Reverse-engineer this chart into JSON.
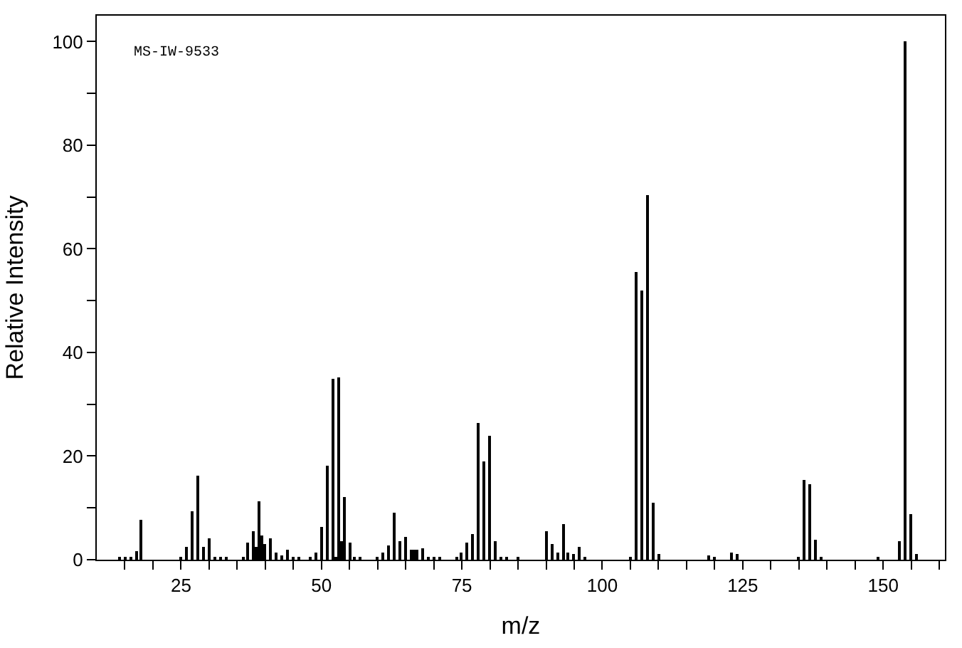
{
  "chart_data": {
    "type": "bar",
    "xlabel": "m/z",
    "ylabel": "Relative Intensity",
    "annotations": [
      "MS-IW-9533"
    ],
    "x": [
      14,
      15,
      16,
      17,
      18,
      25,
      26,
      27,
      28,
      29,
      30,
      31,
      32,
      33,
      36,
      37,
      38,
      38.5,
      39,
      39.5,
      40,
      41,
      42,
      43,
      44,
      45,
      46,
      48,
      49,
      50,
      51,
      52,
      52.5,
      53,
      53.5,
      54,
      55,
      56,
      57,
      60,
      61,
      62,
      63,
      64,
      65,
      66,
      66.5,
      67,
      68,
      69,
      70,
      71,
      74,
      75,
      76,
      77,
      78,
      79,
      80,
      81,
      82,
      83,
      85,
      90,
      91,
      92,
      93,
      94,
      95,
      96,
      97,
      105,
      106,
      107,
      108,
      109,
      110,
      119,
      120,
      123,
      124,
      135,
      136,
      137,
      138,
      139,
      149,
      153,
      154,
      155,
      156
    ],
    "values": [
      0.4,
      0.4,
      0.4,
      1.6,
      7.7,
      0.4,
      2.6,
      9.4,
      16.2,
      2.6,
      4.2,
      0.4,
      0.4,
      0.4,
      0.4,
      3.2,
      5.6,
      2.6,
      11.3,
      4.7,
      2.9,
      4.2,
      1.5,
      0.9,
      2.0,
      0.4,
      0.4,
      0.4,
      1.5,
      6.2,
      18.1,
      35.0,
      0.4,
      35.3,
      3.6,
      12.1,
      3.4,
      0.6,
      0.4,
      0.4,
      1.5,
      2.8,
      9.1,
      3.6,
      4.5,
      2.0,
      2.0,
      2.0,
      2.3,
      0.6,
      0.5,
      0.5,
      0.5,
      1.5,
      3.4,
      5.0,
      26.4,
      19.1,
      24.0,
      3.6,
      0.6,
      0.5,
      0.5,
      5.6,
      3.1,
      1.5,
      6.9,
      1.5,
      1.2,
      2.6,
      0.5,
      0.6,
      55.5,
      51.9,
      70.4,
      11.1,
      1.1,
      0.9,
      0.5,
      1.3,
      1.1,
      0.5,
      15.4,
      14.6,
      3.9,
      0.5,
      0.5,
      3.6,
      100,
      8.8,
      1.2
    ],
    "color": "#000000",
    "xlim": [
      10,
      161
    ],
    "ylim": [
      0,
      105
    ],
    "xticks": [
      {
        "value": 15,
        "label": null
      },
      {
        "value": 20,
        "label": null
      },
      25,
      {
        "value": 30,
        "label": null
      },
      {
        "value": 35,
        "label": null
      },
      {
        "value": 40,
        "label": null
      },
      {
        "value": 45,
        "label": null
      },
      50,
      {
        "value": 55,
        "label": null
      },
      {
        "value": 60,
        "label": null
      },
      {
        "value": 65,
        "label": null
      },
      {
        "value": 70,
        "label": null
      },
      75,
      {
        "value": 80,
        "label": null
      },
      {
        "value": 85,
        "label": null
      },
      {
        "value": 90,
        "label": null
      },
      {
        "value": 95,
        "label": null
      },
      100,
      {
        "value": 105,
        "label": null
      },
      {
        "value": 110,
        "label": null
      },
      {
        "value": 115,
        "label": null
      },
      {
        "value": 120,
        "label": null
      },
      125,
      {
        "value": 130,
        "label": null
      },
      {
        "value": 135,
        "label": null
      },
      {
        "value": 140,
        "label": null
      },
      {
        "value": 145,
        "label": null
      },
      150,
      {
        "value": 155,
        "label": null
      },
      {
        "value": 160,
        "label": null
      }
    ],
    "yticks": [
      0,
      {
        "value": 10,
        "label": null
      },
      20,
      {
        "value": 30,
        "label": null
      },
      40,
      {
        "value": 50,
        "label": null
      },
      60,
      {
        "value": 70,
        "label": null
      },
      80,
      {
        "value": 90,
        "label": null
      },
      100
    ]
  }
}
